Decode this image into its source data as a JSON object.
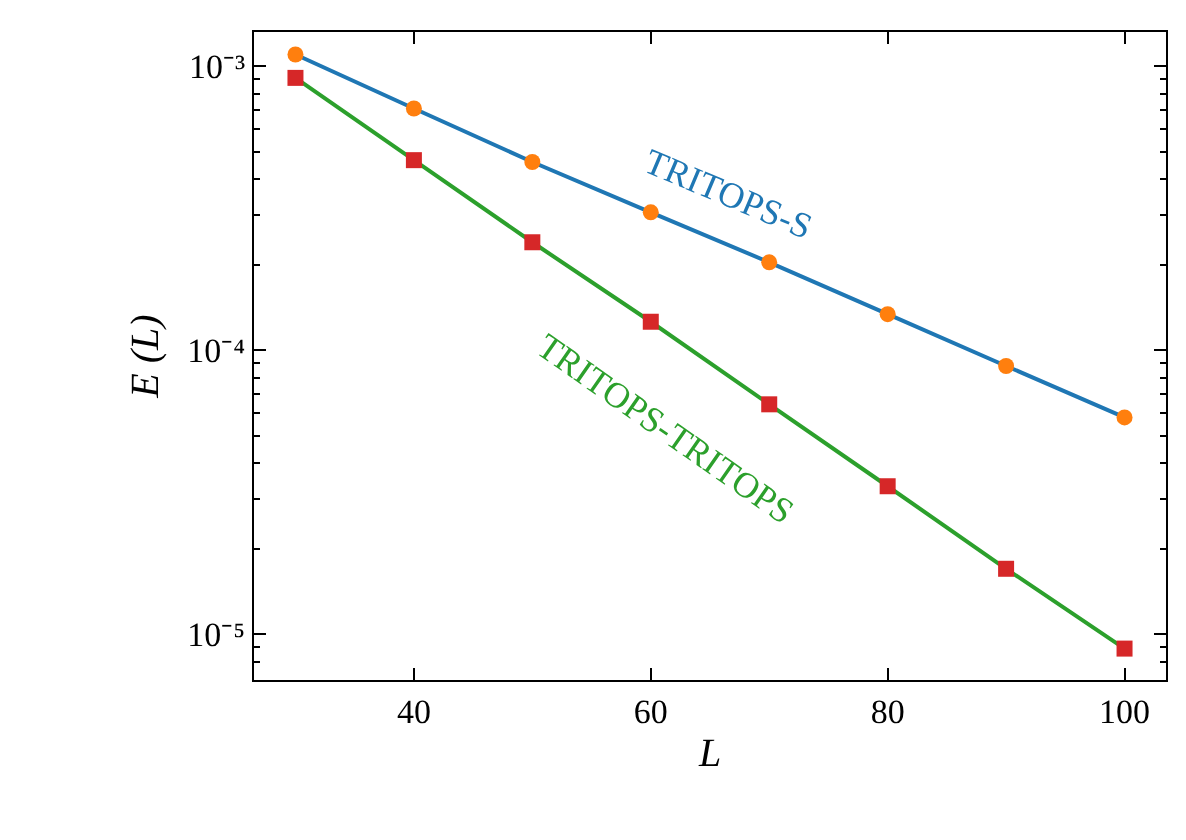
{
  "chart_data": {
    "type": "line",
    "xlabel": "L",
    "ylabel": "E (L)",
    "x": [
      30,
      40,
      50,
      60,
      70,
      80,
      90,
      100
    ],
    "series": [
      {
        "name": "TRITOPS-S",
        "color": "#1f77b4",
        "colors": [
          "#ff7f0e",
          "#ff7f0e",
          "#ff7f0e",
          "#ff7f0e",
          "#ff7f0e",
          "#ff7f0e",
          "#ff7f0e",
          "#ff7f0e"
        ],
        "marker": "circle",
        "values": [
          0.0011,
          0.00071,
          0.00046,
          0.000306,
          0.000204,
          0.000134,
          8.8e-05,
          5.8e-05
        ]
      },
      {
        "name": "TRITOPS-TRITOPS",
        "color": "#2ca02c",
        "colors": [
          "#d62728",
          "#d62728",
          "#d62728",
          "#d62728",
          "#d62728",
          "#d62728",
          "#d62728",
          "#d62728"
        ],
        "marker": "square",
        "values": [
          0.00091,
          0.000467,
          0.00024,
          0.000126,
          6.45e-05,
          3.32e-05,
          1.7e-05,
          8.9e-06
        ]
      }
    ],
    "log": "y",
    "xlim": [
      26.5,
      103.5
    ],
    "xticks": [
      40,
      60,
      80,
      100
    ],
    "ylim": [
      6.9e-06,
      0.00132
    ],
    "yticks": [
      {
        "value": 1e-05,
        "label": "10⁻⁵"
      },
      {
        "value": 0.0001,
        "label": "10⁻⁴"
      },
      {
        "value": 0.001,
        "label": "10⁻³"
      }
    ]
  }
}
